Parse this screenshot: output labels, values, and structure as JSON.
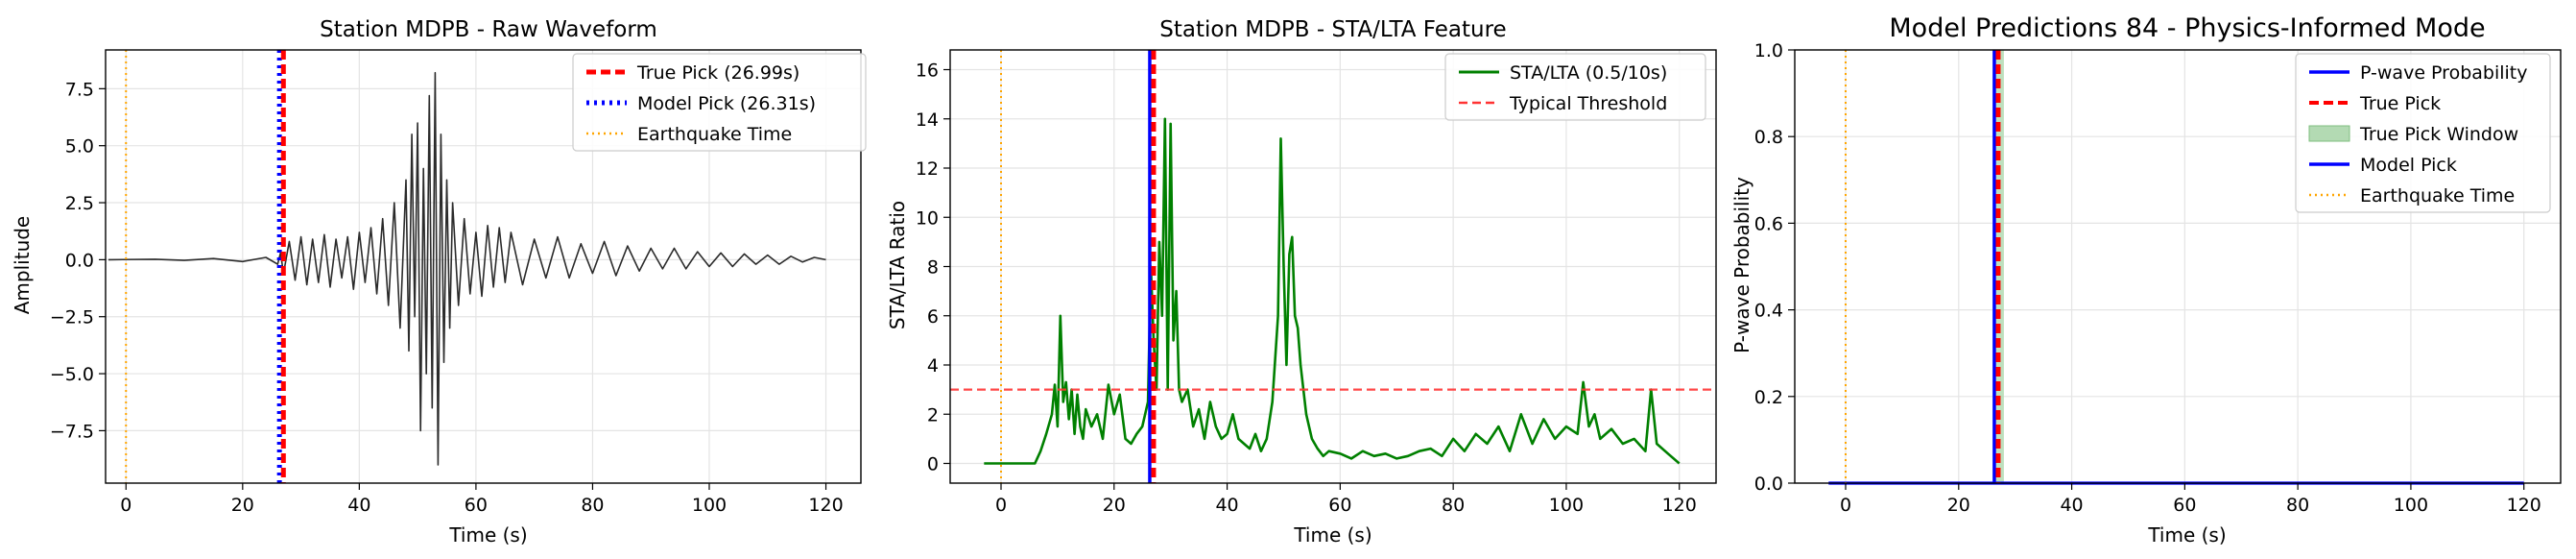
{
  "colors": {
    "waveform": "#2b2b2b",
    "true_pick": "#ff0000",
    "model_pick": "#0000ff",
    "eq_time": "#ffa500",
    "sta_lta": "#008000",
    "threshold": "#ff3333",
    "probability": "#0000ff",
    "window_fill": "#b3dab3"
  },
  "chart_data": [
    {
      "type": "line",
      "title": "Station MDPB - Raw Waveform",
      "xlabel": "Time (s)",
      "ylabel": "Amplitude",
      "xlim": [
        -3.5,
        126
      ],
      "ylim": [
        -9.8,
        9.2
      ],
      "xticks": [
        0,
        20,
        40,
        60,
        80,
        100,
        120
      ],
      "yticks": [
        -7.5,
        -5.0,
        -2.5,
        0.0,
        2.5,
        5.0,
        7.5
      ],
      "ytick_labels": [
        "−7.5",
        "−5.0",
        "−2.5",
        "0.0",
        "2.5",
        "5.0",
        "7.5"
      ],
      "grid": true,
      "legend_position": "top-right",
      "series": [
        {
          "name": "",
          "x": [
            -3,
            5,
            10,
            15,
            20,
            24,
            26,
            26.5,
            27,
            28,
            29,
            30,
            31,
            32,
            33,
            34,
            35,
            36,
            37,
            38,
            39,
            40,
            41,
            42,
            43,
            44,
            45,
            46,
            47,
            48,
            48.5,
            49,
            49.5,
            50,
            50.5,
            51,
            51.5,
            52,
            52.5,
            53,
            53.5,
            54,
            54.5,
            55,
            55.5,
            56,
            57,
            58,
            59,
            60,
            61,
            62,
            63,
            64,
            65,
            66,
            68,
            70,
            72,
            74,
            76,
            78,
            80,
            82,
            84,
            86,
            88,
            90,
            92,
            94,
            96,
            98,
            100,
            102,
            104,
            106,
            108,
            110,
            112,
            114,
            116,
            118,
            120
          ],
          "y": [
            0.0,
            0.02,
            -0.03,
            0.05,
            -0.08,
            0.1,
            -0.2,
            0.3,
            -0.6,
            0.8,
            -0.9,
            1.0,
            -1.1,
            0.9,
            -1.0,
            1.1,
            -1.2,
            0.9,
            -0.8,
            1.0,
            -1.3,
            1.2,
            -1.0,
            1.4,
            -1.5,
            1.8,
            -2.0,
            2.5,
            -3.0,
            3.5,
            -4.0,
            5.5,
            -2.5,
            6.0,
            -7.5,
            4.0,
            -5.0,
            7.2,
            -6.5,
            8.2,
            -9.0,
            5.5,
            -4.5,
            3.5,
            -3.0,
            2.5,
            -2.0,
            1.8,
            -1.5,
            1.2,
            -1.6,
            1.5,
            -1.2,
            1.4,
            -1.0,
            1.2,
            -1.1,
            0.9,
            -0.8,
            1.0,
            -0.8,
            0.7,
            -0.6,
            0.8,
            -0.7,
            0.6,
            -0.5,
            0.5,
            -0.4,
            0.5,
            -0.4,
            0.35,
            -0.3,
            0.3,
            -0.3,
            0.25,
            -0.2,
            0.2,
            -0.2,
            0.15,
            -0.1,
            0.1,
            0.0
          ]
        }
      ],
      "vlines": [
        {
          "name": "True Pick (26.99s)",
          "x": 26.99,
          "style": "dashed",
          "color_key": "true_pick"
        },
        {
          "name": "Model Pick (26.31s)",
          "x": 26.31,
          "style": "dotted",
          "color_key": "model_pick"
        },
        {
          "name": "Earthquake Time",
          "x": 0,
          "style": "dotted-thin",
          "color_key": "eq_time"
        }
      ]
    },
    {
      "type": "line",
      "title": "Station MDPB - STA/LTA Feature",
      "xlabel": "Time (s)",
      "ylabel": "STA/LTA Ratio",
      "xlim": [
        -9,
        126.5
      ],
      "ylim": [
        -0.8,
        16.8
      ],
      "xticks": [
        0,
        20,
        40,
        60,
        80,
        100,
        120
      ],
      "yticks": [
        0,
        2,
        4,
        6,
        8,
        10,
        12,
        14,
        16
      ],
      "grid": true,
      "legend_position": "top-right",
      "series": [
        {
          "name": "STA/LTA (0.5/10s)",
          "x": [
            -3,
            6,
            7,
            8,
            9,
            9.5,
            10,
            10.5,
            11,
            11.5,
            12,
            12.5,
            13,
            13.5,
            14,
            14.5,
            15,
            16,
            17,
            18,
            19,
            20,
            21,
            22,
            23,
            24,
            25,
            26,
            26.5,
            27,
            27.5,
            28,
            28.5,
            29,
            29.5,
            30,
            30.5,
            31,
            31.5,
            32,
            33,
            34,
            35,
            36,
            37,
            38,
            39,
            40,
            41,
            42,
            43,
            44,
            45,
            46,
            47,
            48,
            49,
            49.5,
            50,
            50.5,
            51,
            51.5,
            52,
            52.5,
            53,
            54,
            55,
            56,
            57,
            58,
            60,
            62,
            64,
            66,
            68,
            70,
            72,
            74,
            76,
            78,
            80,
            82,
            84,
            86,
            88,
            90,
            92,
            94,
            96,
            98,
            100,
            102,
            103,
            104,
            105,
            106,
            108,
            110,
            112,
            114,
            115,
            116,
            118,
            120
          ],
          "y": [
            0.0,
            0.0,
            0.5,
            1.2,
            2.0,
            3.2,
            1.5,
            6.0,
            2.5,
            3.3,
            1.8,
            3.0,
            1.2,
            2.8,
            1.5,
            1.0,
            2.2,
            1.5,
            2.0,
            1.0,
            3.2,
            2.0,
            2.8,
            1.0,
            0.8,
            1.2,
            1.5,
            2.5,
            8.0,
            5.0,
            3.0,
            9.0,
            6.0,
            14.0,
            3.0,
            13.8,
            5.0,
            7.0,
            3.0,
            2.5,
            3.0,
            1.5,
            2.2,
            1.0,
            2.5,
            1.5,
            1.0,
            1.2,
            2.0,
            1.0,
            0.8,
            0.6,
            1.2,
            0.5,
            1.0,
            2.5,
            6.0,
            13.2,
            8.0,
            4.0,
            8.5,
            9.2,
            6.0,
            5.5,
            4.0,
            2.0,
            1.0,
            0.6,
            0.3,
            0.5,
            0.4,
            0.2,
            0.5,
            0.3,
            0.4,
            0.2,
            0.3,
            0.5,
            0.6,
            0.3,
            1.0,
            0.5,
            1.2,
            0.8,
            1.5,
            0.5,
            2.0,
            0.8,
            1.8,
            1.0,
            1.5,
            1.2,
            3.3,
            1.5,
            2.0,
            1.0,
            1.4,
            0.8,
            1.0,
            0.5,
            3.0,
            0.8,
            0.4,
            0.0
          ]
        }
      ],
      "hlines": [
        {
          "name": "Typical Threshold",
          "y": 3,
          "style": "dashed",
          "color_key": "threshold"
        }
      ],
      "vlines": [
        {
          "name": "",
          "x": 26.99,
          "style": "dashed",
          "color_key": "true_pick"
        },
        {
          "name": "",
          "x": 26.31,
          "style": "solid",
          "color_key": "model_pick"
        },
        {
          "name": "",
          "x": 0,
          "style": "dotted-thin",
          "color_key": "eq_time"
        }
      ]
    },
    {
      "type": "line",
      "title": "Model Predictions 84 - Physics-Informed Mode",
      "xlabel": "Time (s)",
      "ylabel": "P-wave Probability",
      "xlim": [
        -9,
        126.5
      ],
      "ylim": [
        0.0,
        1.0
      ],
      "xticks": [
        0,
        20,
        40,
        60,
        80,
        100,
        120
      ],
      "yticks": [
        0.0,
        0.2,
        0.4,
        0.6,
        0.8,
        1.0
      ],
      "grid": true,
      "legend_position": "top-right",
      "series": [
        {
          "name": "P-wave Probability",
          "x": [
            -3,
            120
          ],
          "y": [
            0.0,
            0.0
          ]
        }
      ],
      "span": {
        "name": "True Pick Window",
        "x0": 26.0,
        "x1": 28.0,
        "color_key": "window_fill"
      },
      "vlines": [
        {
          "name": "True Pick",
          "x": 26.99,
          "style": "dashed",
          "color_key": "true_pick"
        },
        {
          "name": "Model Pick",
          "x": 26.31,
          "style": "solid",
          "color_key": "model_pick"
        },
        {
          "name": "Earthquake Time",
          "x": 0,
          "style": "dotted-thin",
          "color_key": "eq_time"
        }
      ]
    }
  ]
}
